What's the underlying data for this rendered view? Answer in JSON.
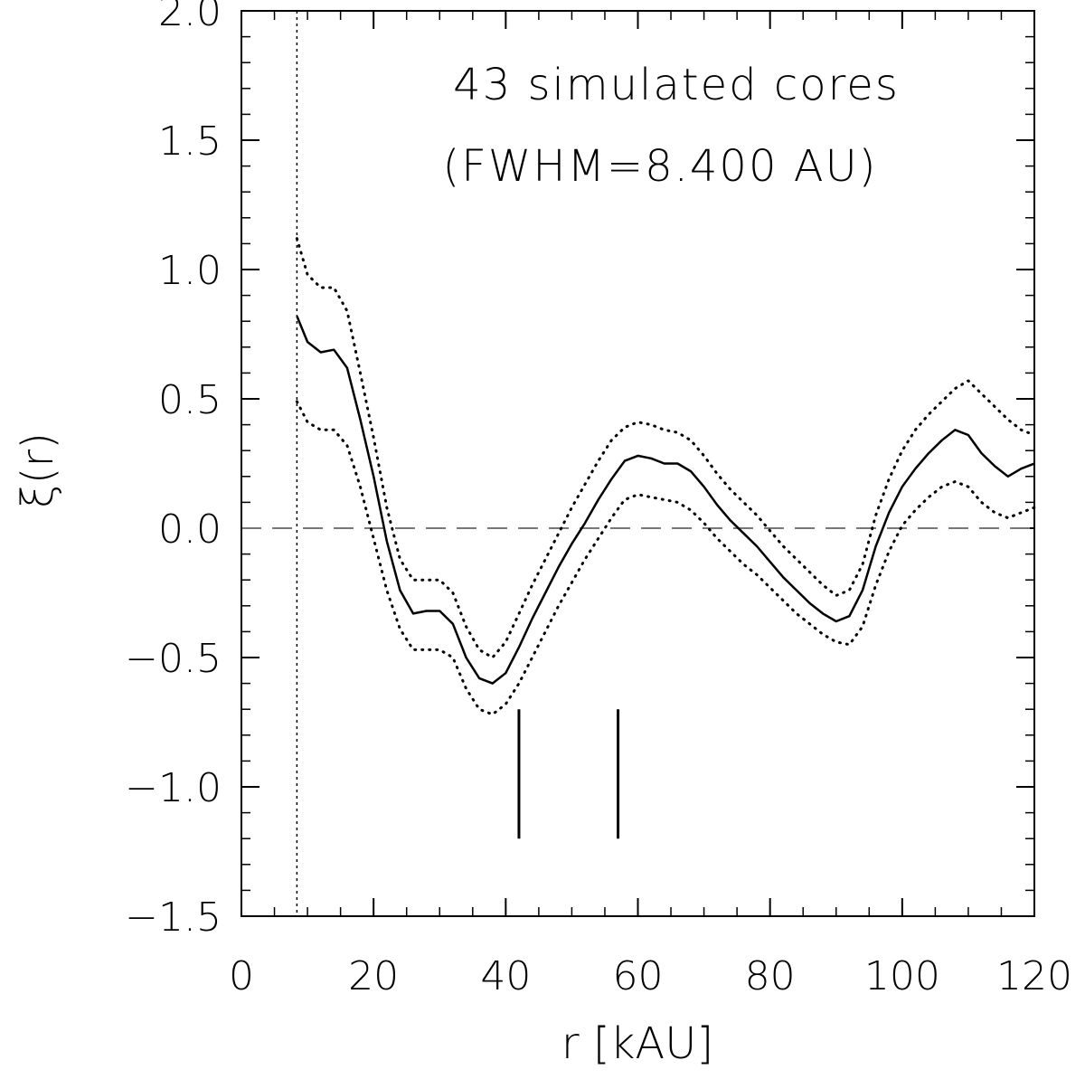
{
  "chart_data": {
    "type": "line",
    "title": "",
    "xlabel": "r [kAU]",
    "ylabel": "ξ(r)",
    "xlim": [
      0,
      120
    ],
    "ylim": [
      -1.5,
      2.0
    ],
    "xticks": [
      0,
      20,
      40,
      60,
      80,
      100,
      120
    ],
    "xtick_labels": [
      "0",
      "20",
      "40",
      "60",
      "80",
      "100",
      "120"
    ],
    "xtick_minor_step": 5,
    "yticks": [
      -1.5,
      -1.0,
      -0.5,
      0.0,
      0.5,
      1.0,
      1.5,
      2.0
    ],
    "ytick_labels": [
      "−1.5",
      "−1.0",
      "−0.5",
      "0.0",
      "0.5",
      "1.0",
      "1.5",
      "2.0"
    ],
    "ytick_minor_step": 0.1,
    "annotations": [
      "43 simulated cores",
      "(FWHM=8.400 AU)"
    ],
    "reference_lines": {
      "zero_line_y": 0.0,
      "vertical_line_x": 8.4,
      "markers": [
        {
          "x": 42,
          "y_from": -1.2,
          "y_to": -0.7
        },
        {
          "x": 57,
          "y_from": -1.2,
          "y_to": -0.7
        }
      ]
    },
    "series": [
      {
        "name": "xi",
        "style": "solid",
        "x": [
          8.4,
          10,
          12,
          14,
          16,
          18,
          20,
          22,
          24,
          26,
          28,
          30,
          32,
          34,
          36,
          38,
          40,
          42,
          44,
          46,
          48,
          50,
          52,
          54,
          56,
          58,
          60,
          62,
          64,
          66,
          68,
          70,
          72,
          74,
          76,
          78,
          80,
          82,
          84,
          86,
          88,
          90,
          92,
          94,
          96,
          98,
          100,
          102,
          104,
          106,
          108,
          110,
          112,
          114,
          116,
          118,
          120
        ],
        "y": [
          0.82,
          0.72,
          0.68,
          0.69,
          0.62,
          0.42,
          0.2,
          -0.05,
          -0.24,
          -0.33,
          -0.32,
          -0.32,
          -0.37,
          -0.5,
          -0.58,
          -0.6,
          -0.56,
          -0.46,
          -0.35,
          -0.25,
          -0.15,
          -0.06,
          0.02,
          0.11,
          0.19,
          0.26,
          0.28,
          0.27,
          0.25,
          0.25,
          0.22,
          0.16,
          0.09,
          0.03,
          -0.02,
          -0.07,
          -0.13,
          -0.19,
          -0.24,
          -0.29,
          -0.33,
          -0.36,
          -0.34,
          -0.24,
          -0.07,
          0.06,
          0.16,
          0.23,
          0.29,
          0.34,
          0.38,
          0.36,
          0.29,
          0.24,
          0.2,
          0.23,
          0.25
        ]
      },
      {
        "name": "upper",
        "style": "dotted",
        "x": [
          8.4,
          10,
          12,
          14,
          16,
          18,
          20,
          22,
          24,
          26,
          28,
          30,
          32,
          34,
          36,
          38,
          40,
          42,
          44,
          46,
          48,
          50,
          52,
          54,
          56,
          58,
          60,
          62,
          64,
          66,
          68,
          70,
          72,
          74,
          76,
          78,
          80,
          82,
          84,
          86,
          88,
          90,
          92,
          94,
          96,
          98,
          100,
          102,
          104,
          106,
          108,
          110,
          112,
          114,
          116,
          118,
          120
        ],
        "y": [
          1.12,
          0.98,
          0.93,
          0.93,
          0.84,
          0.6,
          0.35,
          0.08,
          -0.12,
          -0.2,
          -0.2,
          -0.2,
          -0.25,
          -0.38,
          -0.47,
          -0.5,
          -0.44,
          -0.33,
          -0.22,
          -0.12,
          -0.02,
          0.08,
          0.17,
          0.26,
          0.34,
          0.39,
          0.41,
          0.4,
          0.38,
          0.37,
          0.34,
          0.28,
          0.21,
          0.15,
          0.1,
          0.05,
          -0.01,
          -0.07,
          -0.12,
          -0.17,
          -0.22,
          -0.26,
          -0.24,
          -0.14,
          0.05,
          0.19,
          0.3,
          0.38,
          0.44,
          0.49,
          0.54,
          0.57,
          0.52,
          0.47,
          0.42,
          0.38,
          0.36
        ]
      },
      {
        "name": "lower",
        "style": "dotted",
        "x": [
          8.4,
          10,
          12,
          14,
          16,
          18,
          20,
          22,
          24,
          26,
          28,
          30,
          32,
          34,
          36,
          38,
          40,
          42,
          44,
          46,
          48,
          50,
          52,
          54,
          56,
          58,
          60,
          62,
          64,
          66,
          68,
          70,
          72,
          74,
          76,
          78,
          80,
          82,
          84,
          86,
          88,
          90,
          92,
          94,
          96,
          98,
          100,
          102,
          104,
          106,
          108,
          110,
          112,
          114,
          116,
          118,
          120
        ],
        "y": [
          0.49,
          0.41,
          0.38,
          0.38,
          0.32,
          0.16,
          -0.04,
          -0.24,
          -0.39,
          -0.47,
          -0.47,
          -0.47,
          -0.5,
          -0.62,
          -0.7,
          -0.72,
          -0.68,
          -0.6,
          -0.5,
          -0.4,
          -0.3,
          -0.21,
          -0.12,
          -0.04,
          0.04,
          0.11,
          0.13,
          0.12,
          0.11,
          0.1,
          0.07,
          0.02,
          -0.04,
          -0.09,
          -0.14,
          -0.18,
          -0.23,
          -0.28,
          -0.33,
          -0.37,
          -0.41,
          -0.44,
          -0.45,
          -0.38,
          -0.22,
          -0.09,
          0.01,
          0.07,
          0.12,
          0.16,
          0.18,
          0.16,
          0.1,
          0.06,
          0.04,
          0.06,
          0.08
        ]
      }
    ]
  }
}
